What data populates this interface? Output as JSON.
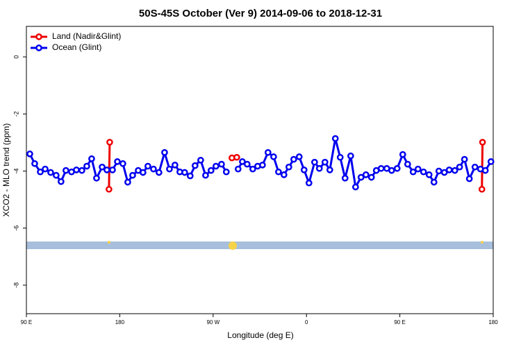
{
  "chart_data": {
    "type": "line",
    "title": "50S-45S October (Ver 9)   2014-09-06 to 2018-12-31",
    "x_label": "Longitude (deg E)",
    "y_label": "XCO2 - MLO trend (ppm)",
    "xlim": [
      90,
      540
    ],
    "xticks": [
      {
        "value": 90,
        "label": "90 E"
      },
      {
        "value": 180,
        "label": "180"
      },
      {
        "value": 270,
        "label": "90 W"
      },
      {
        "value": 360,
        "label": "0"
      },
      {
        "value": 450,
        "label": "90 E"
      },
      {
        "value": 540,
        "label": "180"
      }
    ],
    "ylim": [
      -9.0,
      1.07
    ],
    "yticks": [
      0,
      -2,
      -4,
      -6,
      -8
    ],
    "legend": "top-left",
    "series": [
      {
        "name": "Land (Nadir&Glint)",
        "color": "#ee0000",
        "x": [
          169.6,
          170.3,
          null,
          288.1,
          292.8,
          null,
          529.1,
          529.7
        ],
        "values": [
          -4.64,
          -2.99,
          null,
          -3.54,
          -3.52,
          null,
          -4.64,
          -2.99
        ]
      },
      {
        "name": "Ocean (Glint)",
        "color": "#0000ee",
        "x": [
          93.3,
          98.0,
          103.4,
          108.1,
          113.4,
          118.7,
          123.4,
          128.1,
          133.5,
          138.2,
          143.5,
          148.2,
          152.9,
          157.6,
          163.0,
          167.6,
          173.0,
          177.7,
          183.0,
          187.7,
          192.4,
          197.8,
          202.4,
          207.1,
          212.5,
          217.8,
          223.2,
          227.9,
          233.2,
          237.9,
          242.6,
          247.9,
          252.6,
          258.0,
          262.7,
          268.0,
          272.7,
          278.1,
          282.7,
          null,
          294.1,
          298.2,
          302.8,
          308.2,
          312.9,
          317.6,
          322.9,
          328.3,
          333.0,
          338.3,
          343.0,
          347.7,
          353.0,
          357.7,
          362.4,
          367.8,
          372.4,
          377.8,
          382.5,
          387.8,
          392.5,
          397.2,
          402.6,
          407.3,
          412.6,
          417.3,
          422.6,
          427.3,
          432.0,
          437.4,
          442.1,
          447.4,
          452.8,
          457.5,
          462.8,
          467.5,
          472.8,
          478.2,
          482.9,
          487.6,
          492.9,
          497.6,
          503.0,
          507.6,
          512.3,
          517.0,
          522.4,
          527.7,
          532.4,
          537.8
        ],
        "values": [
          -3.4,
          -3.74,
          -4.03,
          -3.93,
          -4.05,
          -4.15,
          -4.37,
          -3.98,
          -4.03,
          -3.96,
          -3.98,
          -3.83,
          -3.57,
          -4.25,
          -3.86,
          -3.96,
          -3.96,
          -3.67,
          -3.74,
          -4.39,
          -4.15,
          -3.98,
          -4.05,
          -3.83,
          -3.93,
          -4.05,
          -3.35,
          -3.93,
          -3.79,
          -4.03,
          -4.05,
          -4.17,
          -3.81,
          -3.62,
          -4.15,
          -3.98,
          -3.83,
          -3.76,
          -4.03,
          null,
          -3.93,
          -3.67,
          -3.76,
          -3.93,
          -3.83,
          -3.79,
          -3.35,
          -3.5,
          -4.03,
          -4.13,
          -3.86,
          -3.59,
          -3.5,
          -3.96,
          -4.42,
          -3.69,
          -3.91,
          -3.69,
          -3.96,
          -2.86,
          -3.52,
          -4.25,
          -3.47,
          -4.56,
          -4.22,
          -4.13,
          -4.22,
          -3.98,
          -3.91,
          -3.91,
          -3.98,
          -3.91,
          -3.42,
          -3.76,
          -4.03,
          -3.93,
          -4.03,
          -4.13,
          -4.39,
          -4.0,
          -4.05,
          -3.96,
          -3.98,
          -3.86,
          -3.59,
          -4.27,
          -3.86,
          -3.93,
          -3.98,
          -3.67
        ]
      }
    ]
  }
}
